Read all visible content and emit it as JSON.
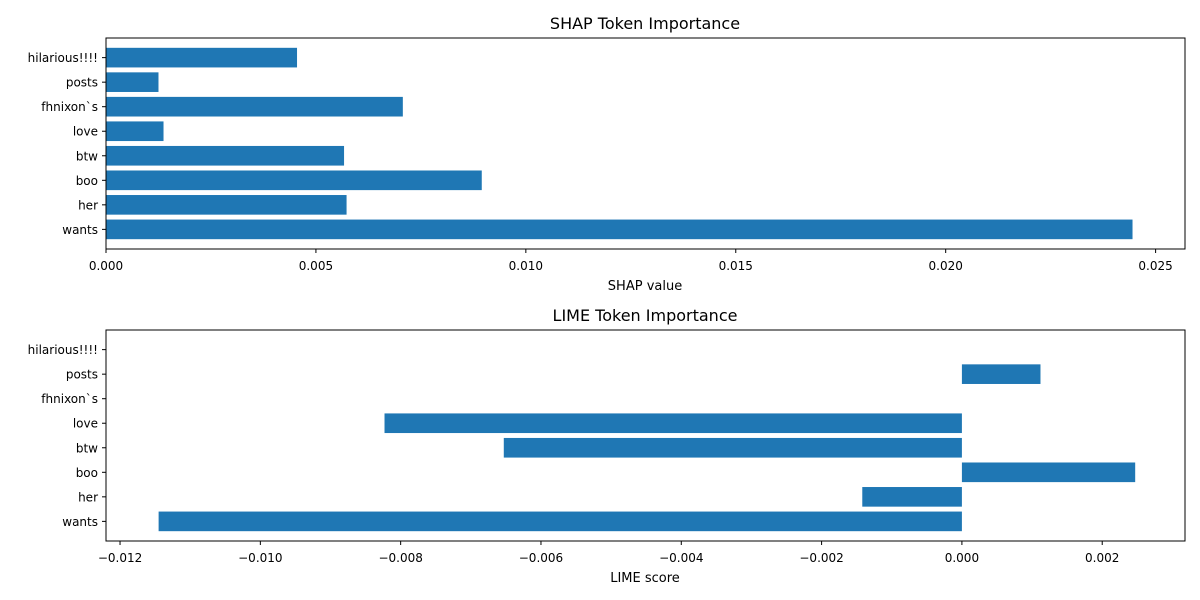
{
  "chart_data": [
    {
      "type": "bar",
      "orientation": "horizontal",
      "title": "SHAP Token Importance",
      "xlabel": "SHAP value",
      "ylabel": "",
      "categories": [
        "hilarious!!!!",
        "posts",
        "fhnixon`s",
        "love",
        "btw",
        "boo",
        "her",
        "wants"
      ],
      "values": [
        0.00455,
        0.00125,
        0.00707,
        0.00137,
        0.00567,
        0.00895,
        0.00573,
        0.02445
      ],
      "xlim": [
        0,
        0.0257
      ],
      "xticks": [
        0.0,
        0.005,
        0.01,
        0.015,
        0.02,
        0.025
      ],
      "xtick_labels": [
        "0.000",
        "0.005",
        "0.010",
        "0.015",
        "0.020",
        "0.025"
      ],
      "color": "#1f77b4",
      "grid": false,
      "legend": "none"
    },
    {
      "type": "bar",
      "orientation": "horizontal",
      "title": "LIME Token Importance",
      "xlabel": "LIME score",
      "ylabel": "",
      "categories": [
        "hilarious!!!!",
        "posts",
        "fhnixon`s",
        "love",
        "btw",
        "boo",
        "her",
        "wants"
      ],
      "values": [
        0.0,
        0.00112,
        0.0,
        -0.00823,
        -0.00653,
        0.00247,
        -0.00142,
        -0.01145
      ],
      "xlim": [
        -0.0122,
        0.00318
      ],
      "xticks": [
        -0.012,
        -0.01,
        -0.008,
        -0.006,
        -0.004,
        -0.002,
        0.0,
        0.002
      ],
      "xtick_labels": [
        "−0.012",
        "−0.010",
        "−0.008",
        "−0.006",
        "−0.004",
        "−0.002",
        "0.000",
        "0.002"
      ],
      "color": "#1f77b4",
      "grid": false,
      "legend": "none"
    }
  ]
}
